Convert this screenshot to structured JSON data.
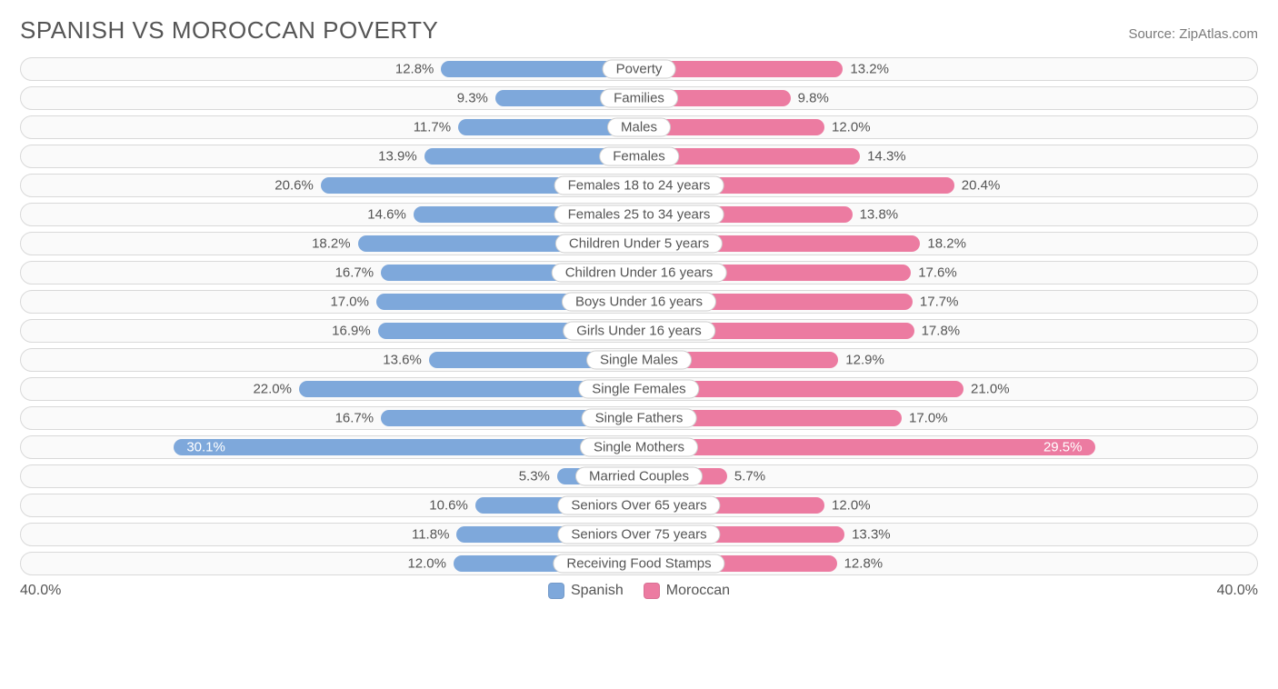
{
  "title": "SPANISH VS MOROCCAN POVERTY",
  "source_label": "Source: ZipAtlas.com",
  "max_scale": 40.0,
  "scale_label_left": "40.0%",
  "scale_label_right": "40.0%",
  "inside_label_threshold": 28.0,
  "colors": {
    "left_bar": "#7ea8db",
    "right_bar": "#ec7ba1",
    "row_border": "#d9d9d9",
    "row_bg": "#fafafa",
    "text": "#555555",
    "cat_border": "#cfcfcf",
    "cat_bg": "#ffffff",
    "page_bg": "#ffffff",
    "inside_text": "#ffffff"
  },
  "legend": {
    "left": {
      "label": "Spanish",
      "color": "#7ea8db"
    },
    "right": {
      "label": "Moroccan",
      "color": "#ec7ba1"
    }
  },
  "rows": [
    {
      "category": "Poverty",
      "left_val": 12.8,
      "left_label": "12.8%",
      "right_val": 13.2,
      "right_label": "13.2%"
    },
    {
      "category": "Families",
      "left_val": 9.3,
      "left_label": "9.3%",
      "right_val": 9.8,
      "right_label": "9.8%"
    },
    {
      "category": "Males",
      "left_val": 11.7,
      "left_label": "11.7%",
      "right_val": 12.0,
      "right_label": "12.0%"
    },
    {
      "category": "Females",
      "left_val": 13.9,
      "left_label": "13.9%",
      "right_val": 14.3,
      "right_label": "14.3%"
    },
    {
      "category": "Females 18 to 24 years",
      "left_val": 20.6,
      "left_label": "20.6%",
      "right_val": 20.4,
      "right_label": "20.4%"
    },
    {
      "category": "Females 25 to 34 years",
      "left_val": 14.6,
      "left_label": "14.6%",
      "right_val": 13.8,
      "right_label": "13.8%"
    },
    {
      "category": "Children Under 5 years",
      "left_val": 18.2,
      "left_label": "18.2%",
      "right_val": 18.2,
      "right_label": "18.2%"
    },
    {
      "category": "Children Under 16 years",
      "left_val": 16.7,
      "left_label": "16.7%",
      "right_val": 17.6,
      "right_label": "17.6%"
    },
    {
      "category": "Boys Under 16 years",
      "left_val": 17.0,
      "left_label": "17.0%",
      "right_val": 17.7,
      "right_label": "17.7%"
    },
    {
      "category": "Girls Under 16 years",
      "left_val": 16.9,
      "left_label": "16.9%",
      "right_val": 17.8,
      "right_label": "17.8%"
    },
    {
      "category": "Single Males",
      "left_val": 13.6,
      "left_label": "13.6%",
      "right_val": 12.9,
      "right_label": "12.9%"
    },
    {
      "category": "Single Females",
      "left_val": 22.0,
      "left_label": "22.0%",
      "right_val": 21.0,
      "right_label": "21.0%"
    },
    {
      "category": "Single Fathers",
      "left_val": 16.7,
      "left_label": "16.7%",
      "right_val": 17.0,
      "right_label": "17.0%"
    },
    {
      "category": "Single Mothers",
      "left_val": 30.1,
      "left_label": "30.1%",
      "right_val": 29.5,
      "right_label": "29.5%"
    },
    {
      "category": "Married Couples",
      "left_val": 5.3,
      "left_label": "5.3%",
      "right_val": 5.7,
      "right_label": "5.7%"
    },
    {
      "category": "Seniors Over 65 years",
      "left_val": 10.6,
      "left_label": "10.6%",
      "right_val": 12.0,
      "right_label": "12.0%"
    },
    {
      "category": "Seniors Over 75 years",
      "left_val": 11.8,
      "left_label": "11.8%",
      "right_val": 13.3,
      "right_label": "13.3%"
    },
    {
      "category": "Receiving Food Stamps",
      "left_val": 12.0,
      "left_label": "12.0%",
      "right_val": 12.8,
      "right_label": "12.8%"
    }
  ]
}
